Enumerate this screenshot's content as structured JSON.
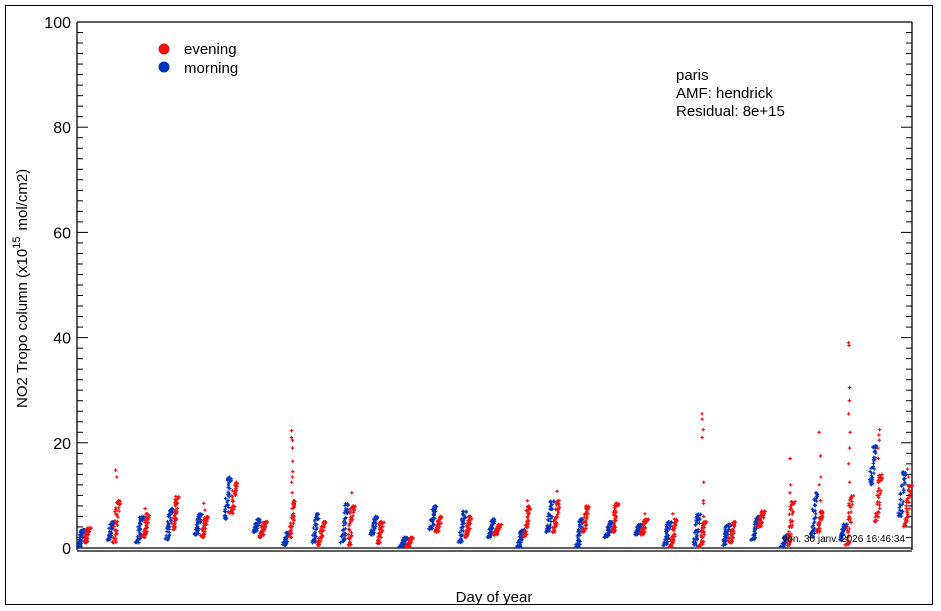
{
  "chart_data": {
    "type": "scatter",
    "title": "",
    "xlabel": "Day of year",
    "ylabel": "NO2 Tropo column (x10^15 mol/cm2)",
    "ylabel_parts": {
      "main": "NO2 Tropo column (x10",
      "sup": "15",
      "unit": "mol/cm2)"
    },
    "ylim": [
      0,
      100
    ],
    "yticks": [
      0,
      20,
      40,
      60,
      80,
      100
    ],
    "ytick_labels": [
      "0",
      "20",
      "40",
      "60",
      "80",
      "100"
    ],
    "minor_step": 2,
    "xticks_visible": false,
    "grid": false,
    "legend": {
      "placement": "top-left",
      "entries": [
        {
          "name": "evening",
          "color": "#ee1111"
        },
        {
          "name": "morning",
          "color": "#0033bb"
        }
      ]
    },
    "annotations": [
      "paris",
      "AMF: hendrick",
      "Residual: 8e+15"
    ],
    "timestamp": "ven. 30 janv. 2026 16:46:34",
    "series": [
      {
        "name": "morning",
        "color": "#0033bb",
        "clusters": [
          {
            "day": 1,
            "min": 0.2,
            "max": 3.5
          },
          {
            "day": 2,
            "min": 1.5,
            "max": 5.0
          },
          {
            "day": 3,
            "min": 1.0,
            "max": 6.0
          },
          {
            "day": 4,
            "min": 1.5,
            "max": 7.5
          },
          {
            "day": 5,
            "min": 2.5,
            "max": 6.5
          },
          {
            "day": 6,
            "min": 5.5,
            "max": 13.5
          },
          {
            "day": 7,
            "min": 3.0,
            "max": 5.5
          },
          {
            "day": 8,
            "min": 0.5,
            "max": 3.0
          },
          {
            "day": 9,
            "min": 1.0,
            "max": 6.5
          },
          {
            "day": 10,
            "min": 1.0,
            "max": 8.5
          },
          {
            "day": 11,
            "min": 2.5,
            "max": 6.0
          },
          {
            "day": 12,
            "min": 0.2,
            "max": 2.0
          },
          {
            "day": 13,
            "min": 3.5,
            "max": 8.0
          },
          {
            "day": 14,
            "min": 1.0,
            "max": 7.0
          },
          {
            "day": 15,
            "min": 2.0,
            "max": 5.5
          },
          {
            "day": 16,
            "min": 0.2,
            "max": 3.5
          },
          {
            "day": 17,
            "min": 3.0,
            "max": 9.0
          },
          {
            "day": 18,
            "min": 0.2,
            "max": 5.5
          },
          {
            "day": 19,
            "min": 2.0,
            "max": 5.0
          },
          {
            "day": 20,
            "min": 2.5,
            "max": 4.5
          },
          {
            "day": 21,
            "min": 0.5,
            "max": 5.0
          },
          {
            "day": 22,
            "min": 0.5,
            "max": 6.5
          },
          {
            "day": 23,
            "min": 0.5,
            "max": 4.5
          },
          {
            "day": 24,
            "min": 1.5,
            "max": 6.0
          },
          {
            "day": 25,
            "min": 0.2,
            "max": 2.5
          },
          {
            "day": 26,
            "min": 2.0,
            "max": 10.5
          },
          {
            "day": 27,
            "min": 1.5,
            "max": 4.5
          },
          {
            "day": 28,
            "min": 12.0,
            "max": 19.5
          },
          {
            "day": 29,
            "min": 6.0,
            "max": 14.5
          }
        ]
      },
      {
        "name": "evening",
        "color": "#ee1111",
        "clusters": [
          {
            "day": 1,
            "min": 1.0,
            "max": 3.8,
            "outliers": []
          },
          {
            "day": 2,
            "min": 1.0,
            "max": 9.0,
            "outliers": [
              13.5,
              14.8
            ]
          },
          {
            "day": 3,
            "min": 2.0,
            "max": 6.5,
            "outliers": [
              7.5
            ]
          },
          {
            "day": 4,
            "min": 3.5,
            "max": 9.8,
            "outliers": []
          },
          {
            "day": 5,
            "min": 2.0,
            "max": 6.0,
            "outliers": [
              7.2,
              8.5
            ]
          },
          {
            "day": 6,
            "min": 6.5,
            "max": 12.5,
            "outliers": []
          },
          {
            "day": 7,
            "min": 2.0,
            "max": 5.0,
            "outliers": []
          },
          {
            "day": 8,
            "min": 2.0,
            "max": 9.0,
            "outliers": [
              10.5,
              12.5,
              13.5,
              14.5,
              16.5,
              19.0,
              20.5,
              21.0,
              22.3
            ]
          },
          {
            "day": 9,
            "min": 0.5,
            "max": 5.0,
            "outliers": []
          },
          {
            "day": 10,
            "min": 0.5,
            "max": 8.0,
            "outliers": [
              10.5
            ]
          },
          {
            "day": 11,
            "min": 0.8,
            "max": 5.0,
            "outliers": []
          },
          {
            "day": 12,
            "min": 0.2,
            "max": 2.0,
            "outliers": []
          },
          {
            "day": 13,
            "min": 3.0,
            "max": 6.0,
            "outliers": []
          },
          {
            "day": 14,
            "min": 2.0,
            "max": 6.0,
            "outliers": []
          },
          {
            "day": 15,
            "min": 2.5,
            "max": 4.5,
            "outliers": []
          },
          {
            "day": 16,
            "min": 2.0,
            "max": 8.0,
            "outliers": [
              9.0
            ]
          },
          {
            "day": 17,
            "min": 3.0,
            "max": 9.0,
            "outliers": [
              10.8
            ]
          },
          {
            "day": 18,
            "min": 3.0,
            "max": 8.0,
            "outliers": []
          },
          {
            "day": 19,
            "min": 3.0,
            "max": 8.5,
            "outliers": []
          },
          {
            "day": 20,
            "min": 2.5,
            "max": 5.5,
            "outliers": [
              6.5
            ]
          },
          {
            "day": 21,
            "min": 0.2,
            "max": 5.5,
            "outliers": [
              6.5
            ]
          },
          {
            "day": 22,
            "min": 0.2,
            "max": 5.0,
            "outliers": [
              6.0,
              8.5,
              9.0,
              12.5,
              21.0,
              22.5,
              24.5,
              25.5
            ]
          },
          {
            "day": 23,
            "min": 1.0,
            "max": 5.0,
            "outliers": []
          },
          {
            "day": 24,
            "min": 4.0,
            "max": 7.0,
            "outliers": []
          },
          {
            "day": 25,
            "min": 0.5,
            "max": 9.0,
            "outliers": [
              10.5,
              12.0,
              17.0
            ]
          },
          {
            "day": 26,
            "min": 3.0,
            "max": 7.0,
            "outliers": [
              9.0,
              12.0,
              13.5,
              17.5,
              22.0
            ]
          },
          {
            "day": 27,
            "min": 0.5,
            "max": 10.0,
            "outliers": [
              12.5,
              16.0,
              19.0,
              22.0,
              25.5,
              28.0,
              30.5,
              38.5,
              39.0
            ]
          },
          {
            "day": 28,
            "min": 5.0,
            "max": 14.0,
            "outliers": [
              17.0,
              19.0,
              20.5,
              21.5,
              22.5
            ]
          },
          {
            "day": 29,
            "min": 4.0,
            "max": 12.0,
            "outliers": [
              13.5,
              15.0
            ]
          }
        ]
      }
    ]
  }
}
